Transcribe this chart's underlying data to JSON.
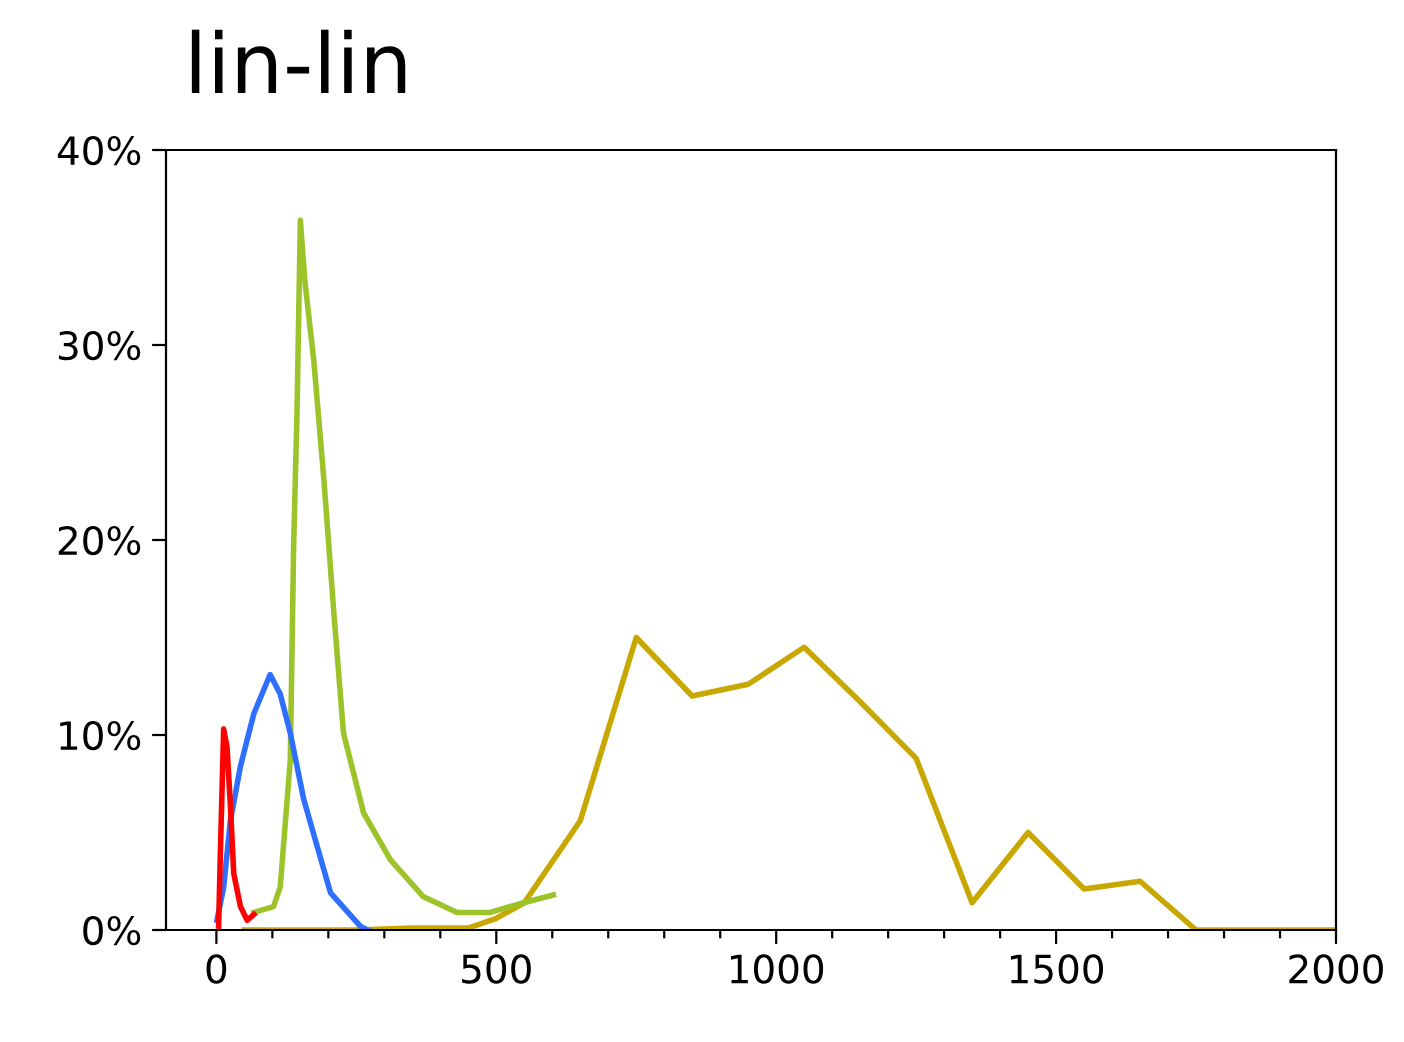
{
  "chart_data": {
    "type": "line",
    "title": "lin-lin",
    "grid": false,
    "marker": "none",
    "line_style": "solid",
    "xlim": [
      -90,
      2000
    ],
    "ylim": [
      0,
      40
    ],
    "xticks": [
      0,
      {
        "value": 100,
        "label": null
      },
      {
        "value": 200,
        "label": null
      },
      {
        "value": 300,
        "label": null
      },
      {
        "value": 400,
        "label": null
      },
      500,
      {
        "value": 600,
        "label": null
      },
      {
        "value": 700,
        "label": null
      },
      {
        "value": 800,
        "label": null
      },
      {
        "value": 900,
        "label": null
      },
      1000,
      {
        "value": 1100,
        "label": null
      },
      {
        "value": 1200,
        "label": null
      },
      {
        "value": 1300,
        "label": null
      },
      {
        "value": 1400,
        "label": null
      },
      1500,
      {
        "value": 1600,
        "label": null
      },
      {
        "value": 1700,
        "label": null
      },
      {
        "value": 1800,
        "label": null
      },
      {
        "value": 1900,
        "label": null
      },
      2000
    ],
    "yticks": [
      {
        "value": 0,
        "label": "0%"
      },
      {
        "value": 10,
        "label": "10%"
      },
      {
        "value": 20,
        "label": "20%"
      },
      {
        "value": 30,
        "label": "30%"
      },
      {
        "value": 40,
        "label": "40%"
      }
    ],
    "series": [
      {
        "color": "#c8a800",
        "x": [
          50,
          150,
          250,
          350,
          450,
          500,
          550,
          650,
          750,
          850,
          950,
          1050,
          1150,
          1250,
          1350,
          1450,
          1550,
          1650,
          1750,
          1850,
          1950,
          2000
        ],
        "values": [
          0,
          0,
          0,
          0.1,
          0.1,
          0.6,
          1.4,
          5.6,
          15,
          12,
          12.6,
          14.5,
          11.7,
          8.8,
          1.4,
          5,
          2.1,
          2.5,
          0,
          0,
          0,
          0
        ]
      },
      {
        "color": "#9dc32b",
        "x": [
          67,
          102,
          114,
          132,
          138,
          144,
          150,
          158,
          174,
          192,
          210,
          227,
          263,
          311,
          370,
          430,
          489,
          549,
          602
        ],
        "values": [
          0.9,
          1.2,
          2.2,
          8.7,
          19.7,
          26.5,
          36.4,
          33.3,
          29.2,
          23.1,
          16.2,
          10.1,
          6.0,
          3.6,
          1.7,
          0.9,
          0.9,
          1.4,
          1.8
        ]
      },
      {
        "color": "#2f6fff",
        "x": [
          1,
          13,
          25,
          43,
          67,
          96,
          114,
          132,
          156,
          180,
          204,
          257,
          270
        ],
        "values": [
          0.5,
          2.2,
          5.6,
          8.4,
          11.1,
          13.1,
          12.1,
          10.1,
          6.7,
          4.3,
          1.9,
          0.2,
          0
        ]
      },
      {
        "color": "#ff0000",
        "x": [
          4,
          7,
          13,
          19,
          25,
          31,
          43,
          55,
          67
        ],
        "values": [
          0.2,
          3.8,
          10.3,
          9.4,
          6.4,
          2.9,
          1.2,
          0.5,
          0.8
        ]
      }
    ]
  }
}
